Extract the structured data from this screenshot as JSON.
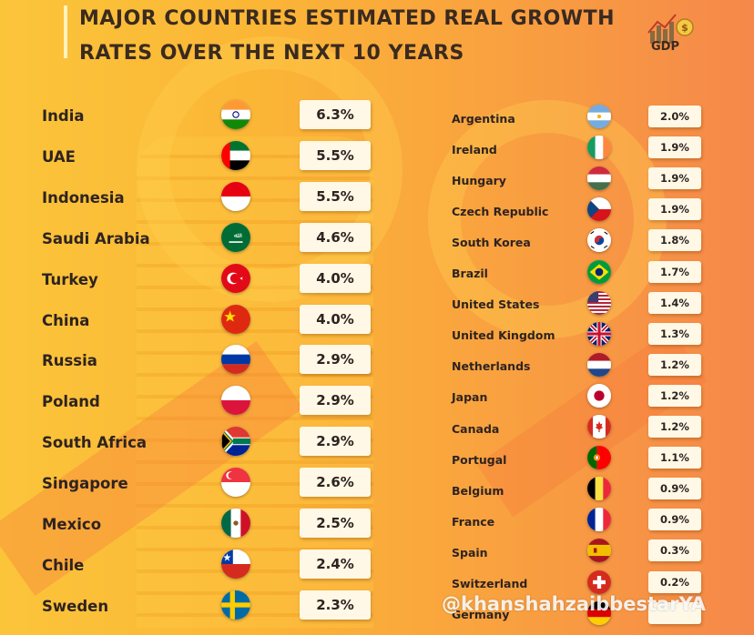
{
  "header": {
    "title_line1": "MAJOR COUNTRIES ESTIMATED REAL GROWTH",
    "title_line2": "RATES OVER THE NEXT 10 YEARS",
    "logo_text": "GDP"
  },
  "watermark": "@khanshahzaibbestarYA",
  "colors": {
    "background_start": "#fbc53a",
    "background_end": "#f5884a",
    "text": "#2e2320",
    "value_box": "#fff8e6"
  },
  "chart_data": {
    "type": "table",
    "title": "MAJOR COUNTRIES ESTIMATED REAL GROWTH RATES OVER THE NEXT 10 YEARS",
    "columns": [
      {
        "rows": [
          {
            "country": "India",
            "value": "6.3%",
            "flag": "india-flag-icon"
          },
          {
            "country": "UAE",
            "value": "5.5%",
            "flag": "uae-flag-icon"
          },
          {
            "country": "Indonesia",
            "value": "5.5%",
            "flag": "indonesia-flag-icon"
          },
          {
            "country": "Saudi Arabia",
            "value": "4.6%",
            "flag": "saudi-arabia-flag-icon"
          },
          {
            "country": "Turkey",
            "value": "4.0%",
            "flag": "turkey-flag-icon"
          },
          {
            "country": "China",
            "value": "4.0%",
            "flag": "china-flag-icon"
          },
          {
            "country": "Russia",
            "value": "2.9%",
            "flag": "russia-flag-icon"
          },
          {
            "country": "Poland",
            "value": "2.9%",
            "flag": "poland-flag-icon"
          },
          {
            "country": "South Africa",
            "value": "2.9%",
            "flag": "south-africa-flag-icon"
          },
          {
            "country": "Singapore",
            "value": "2.6%",
            "flag": "singapore-flag-icon"
          },
          {
            "country": "Mexico",
            "value": "2.5%",
            "flag": "mexico-flag-icon"
          },
          {
            "country": "Chile",
            "value": "2.4%",
            "flag": "chile-flag-icon"
          },
          {
            "country": "Sweden",
            "value": "2.3%",
            "flag": "sweden-flag-icon"
          }
        ]
      },
      {
        "rows": [
          {
            "country": "Argentina",
            "value": "2.0%",
            "flag": "argentina-flag-icon"
          },
          {
            "country": "Ireland",
            "value": "1.9%",
            "flag": "ireland-flag-icon"
          },
          {
            "country": "Hungary",
            "value": "1.9%",
            "flag": "hungary-flag-icon"
          },
          {
            "country": "Czech Republic",
            "value": "1.9%",
            "flag": "czech-republic-flag-icon"
          },
          {
            "country": "South Korea",
            "value": "1.8%",
            "flag": "south-korea-flag-icon"
          },
          {
            "country": "Brazil",
            "value": "1.7%",
            "flag": "brazil-flag-icon"
          },
          {
            "country": "United States",
            "value": "1.4%",
            "flag": "united-states-flag-icon"
          },
          {
            "country": "United Kingdom",
            "value": "1.3%",
            "flag": "united-kingdom-flag-icon"
          },
          {
            "country": "Netherlands",
            "value": "1.2%",
            "flag": "netherlands-flag-icon"
          },
          {
            "country": "Japan",
            "value": "1.2%",
            "flag": "japan-flag-icon"
          },
          {
            "country": "Canada",
            "value": "1.2%",
            "flag": "canada-flag-icon"
          },
          {
            "country": "Portugal",
            "value": "1.1%",
            "flag": "portugal-flag-icon"
          },
          {
            "country": "Belgium",
            "value": "0.9%",
            "flag": "belgium-flag-icon"
          },
          {
            "country": "France",
            "value": "0.9%",
            "flag": "france-flag-icon"
          },
          {
            "country": "Spain",
            "value": "0.3%",
            "flag": "spain-flag-icon"
          },
          {
            "country": "Switzerland",
            "value": "0.2%",
            "flag": "switzerland-flag-icon"
          },
          {
            "country": "Germany",
            "value": "",
            "flag": "germany-flag-icon"
          }
        ]
      }
    ]
  }
}
